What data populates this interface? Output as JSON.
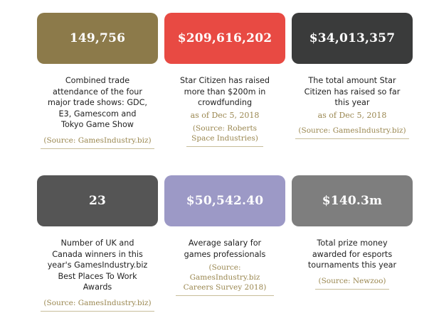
{
  "cards": [
    {
      "value": "149,756",
      "color": "#8c7a4a",
      "description": "Combined trade attendance of the four major trade shows: GDC, E3, Gamescom and Tokyo Game Show",
      "date": "",
      "source": "(Source: GamesIndustry.biz)"
    },
    {
      "value": "$209,616,202",
      "color": "#e84a43",
      "description": "Star Citizen has raised more than $200m in crowdfunding",
      "date": "as of Dec 5, 2018",
      "source": "(Source: Roberts Space Industries)"
    },
    {
      "value": "$34,013,357",
      "color": "#3a3b3b",
      "description": "The total amount Star Citizen has raised so far this year",
      "date": "as of Dec 5, 2018",
      "source": "(Source: GamesIndustry.biz)"
    },
    {
      "value": "23",
      "color": "#555555",
      "description": "Number of UK and Canada winners in this year's GamesIndustry.biz Best Places To Work Awards",
      "date": "",
      "source": "(Source: GamesIndustry.biz)"
    },
    {
      "value": "$50,542.40",
      "color": "#9c99c6",
      "description": "Average salary for games professionals",
      "date": "",
      "source": "(Source: GamesIndustry.biz Careers Survey 2018)"
    },
    {
      "value": "$140.3m",
      "color": "#7e7e7e",
      "description": "Total prize money awarded for esports tournaments this year",
      "date": "",
      "source": "(Source: Newzoo)"
    }
  ]
}
